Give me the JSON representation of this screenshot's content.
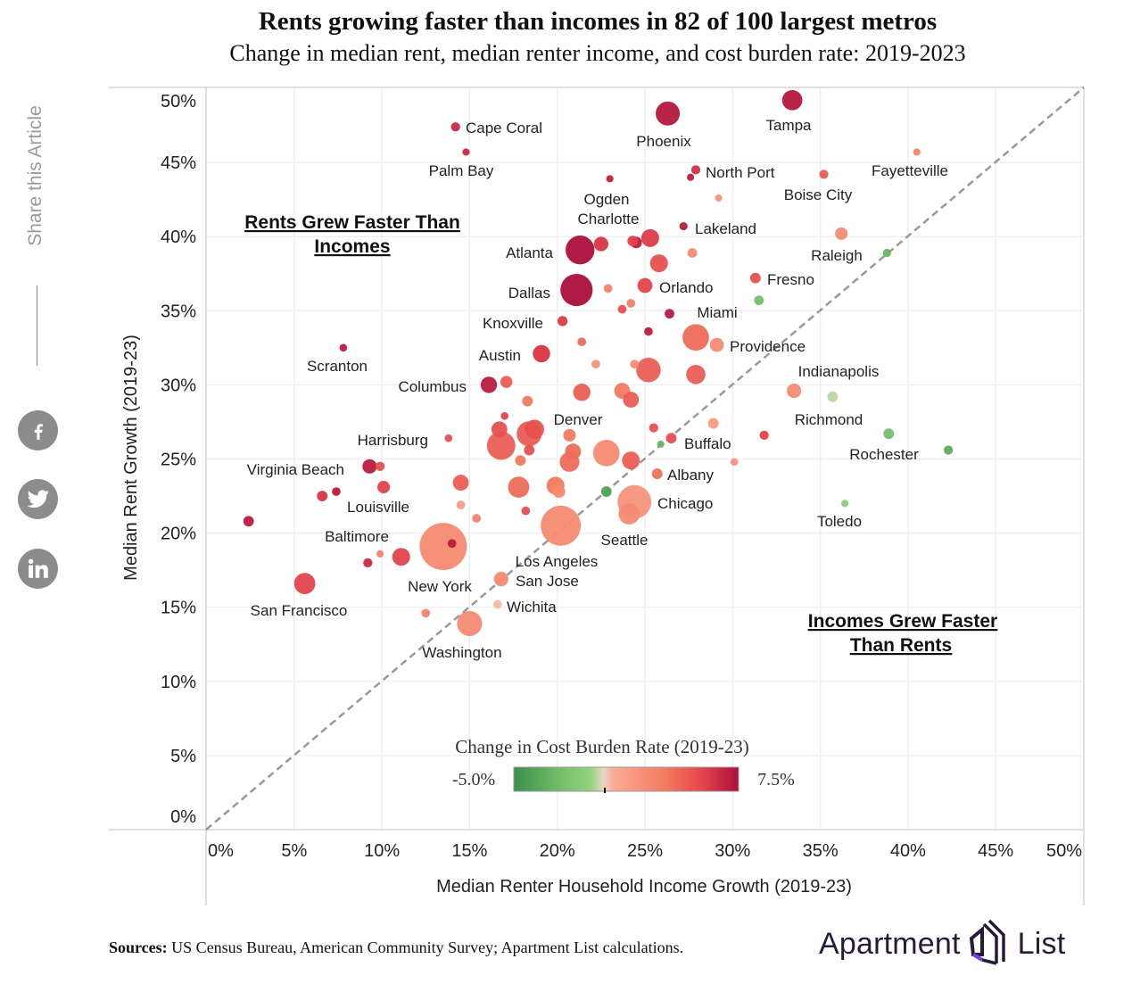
{
  "header": {
    "title": "Rents growing faster than incomes in 82 of 100 largest metros",
    "subtitle": "Change in median rent, median renter income, and cost burden rate: 2019-2023"
  },
  "share": {
    "label": "Share this Article",
    "icons": [
      "facebook-icon",
      "twitter-icon",
      "linkedin-icon"
    ]
  },
  "footer": {
    "sources_label": "Sources:",
    "sources_text": " US Census Bureau, American Community Survey; Apartment List calculations.",
    "logo_text_1": "Apartment",
    "logo_text_2": "List"
  },
  "chart_data": {
    "type": "scatter",
    "title": "Rents growing faster than incomes in 82 of 100 largest metros",
    "subtitle": "Change in median rent, median renter income, and cost burden rate: 2019-2023",
    "xlabel": "Median Renter Household Income Growth (2019-23)",
    "ylabel": "Median Rent Growth (2019-23)",
    "xlim": [
      0,
      50
    ],
    "ylim": [
      0,
      50
    ],
    "x_ticks": [
      "0%",
      "5%",
      "10%",
      "15%",
      "20%",
      "25%",
      "30%",
      "35%",
      "40%",
      "45%",
      "50%"
    ],
    "y_ticks": [
      "0%",
      "5%",
      "10%",
      "15%",
      "20%",
      "25%",
      "30%",
      "35%",
      "40%",
      "45%",
      "50%"
    ],
    "grid": true,
    "reference_line": "y = x (dashed)",
    "annotations": {
      "upper_left": [
        "Rents Grew Faster Than",
        "Incomes"
      ],
      "lower_right": [
        "Incomes Grew Faster ",
        "Than Rents"
      ]
    },
    "color_legend": {
      "title": "Change in Cost Burden Rate (2019-23)",
      "min_label": "-5.0%",
      "max_label": "7.5%",
      "min": -5,
      "max": 7.5,
      "colors": [
        "#3b8f4c",
        "#8fd07c",
        "#f2d2c2",
        "#fbab97",
        "#f27a5e",
        "#e2404a",
        "#ab0f3a"
      ]
    },
    "size_encoding": "relative metro size",
    "points": [
      {
        "name": "Cape Coral",
        "x": 14.2,
        "y": 47.4,
        "cb": 6.5,
        "size": 1.9
      },
      {
        "name": "Palm Bay",
        "x": 14.8,
        "y": 45.7,
        "cb": 6.5,
        "size": 1.5
      },
      {
        "name": "Phoenix",
        "x": 26.3,
        "y": 48.3,
        "cb": 7.2,
        "size": 5.0
      },
      {
        "name": "Tampa",
        "x": 33.4,
        "y": 49.2,
        "cb": 7.2,
        "size": 4.2
      },
      {
        "name": "Ogden",
        "x": 23.0,
        "y": 43.9,
        "cb": 6.8,
        "size": 1.5
      },
      {
        "name": "North Port",
        "x": 27.9,
        "y": 44.5,
        "cb": 6.2,
        "size": 1.9
      },
      {
        "name": "",
        "x": 27.6,
        "y": 44.0,
        "cb": 7.0,
        "size": 1.5
      },
      {
        "name": "",
        "x": 29.2,
        "y": 42.6,
        "cb": 2.0,
        "size": 1.5
      },
      {
        "name": "Boise City",
        "x": 35.2,
        "y": 44.2,
        "cb": 4.5,
        "size": 1.9
      },
      {
        "name": "Fayetteville",
        "x": 40.5,
        "y": 45.7,
        "cb": 3.0,
        "size": 1.5
      },
      {
        "name": "Lakeland",
        "x": 27.2,
        "y": 40.7,
        "cb": 7.0,
        "size": 1.7
      },
      {
        "name": "Charlotte",
        "x": 22.5,
        "y": 39.5,
        "cb": 6.0,
        "size": 3.0
      },
      {
        "name": "",
        "x": 24.3,
        "y": 39.7,
        "cb": 5.5,
        "size": 2.2
      },
      {
        "name": "",
        "x": 24.5,
        "y": 39.6,
        "cb": 7.0,
        "size": 2.4
      },
      {
        "name": "",
        "x": 25.3,
        "y": 39.9,
        "cb": 5.8,
        "size": 3.7
      },
      {
        "name": "Atlanta",
        "x": 21.3,
        "y": 39.1,
        "cb": 7.5,
        "size": 6.0
      },
      {
        "name": "",
        "x": 25.8,
        "y": 38.2,
        "cb": 5.0,
        "size": 3.7
      },
      {
        "name": "",
        "x": 27.7,
        "y": 38.9,
        "cb": 2.5,
        "size": 2.0
      },
      {
        "name": "Raleigh",
        "x": 36.2,
        "y": 40.2,
        "cb": 2.5,
        "size": 2.6
      },
      {
        "name": "",
        "x": 38.8,
        "y": 38.9,
        "cb": -3.0,
        "size": 1.7
      },
      {
        "name": "Fresno",
        "x": 31.3,
        "y": 37.2,
        "cb": 5.0,
        "size": 2.2
      },
      {
        "name": "",
        "x": 31.5,
        "y": 35.7,
        "cb": -2.5,
        "size": 2.0
      },
      {
        "name": "Orlando",
        "x": 25.0,
        "y": 36.7,
        "cb": 5.5,
        "size": 3.1
      },
      {
        "name": "Dallas",
        "x": 21.1,
        "y": 36.4,
        "cb": 7.5,
        "size": 6.7
      },
      {
        "name": "",
        "x": 22.9,
        "y": 36.5,
        "cb": 3.0,
        "size": 1.8
      },
      {
        "name": "",
        "x": 24.2,
        "y": 35.5,
        "cb": 3.2,
        "size": 1.8
      },
      {
        "name": "",
        "x": 23.7,
        "y": 35.1,
        "cb": 5.0,
        "size": 1.8
      },
      {
        "name": "Miami",
        "x": 26.4,
        "y": 34.8,
        "cb": 7.0,
        "size": 2.0
      },
      {
        "name": "Knoxville",
        "x": 20.3,
        "y": 34.3,
        "cb": 5.8,
        "size": 2.1
      },
      {
        "name": "",
        "x": 25.2,
        "y": 33.6,
        "cb": 7.0,
        "size": 1.8
      },
      {
        "name": "",
        "x": 27.9,
        "y": 33.2,
        "cb": 4.0,
        "size": 5.5
      },
      {
        "name": "Providence",
        "x": 29.1,
        "y": 32.7,
        "cb": 2.5,
        "size": 2.9
      },
      {
        "name": "",
        "x": 21.4,
        "y": 32.9,
        "cb": 4.0,
        "size": 1.8
      },
      {
        "name": "Austin",
        "x": 19.1,
        "y": 32.1,
        "cb": 6.0,
        "size": 3.6
      },
      {
        "name": "",
        "x": 22.2,
        "y": 31.4,
        "cb": 2.0,
        "size": 1.8
      },
      {
        "name": "",
        "x": 24.4,
        "y": 31.4,
        "cb": 2.5,
        "size": 1.8
      },
      {
        "name": "",
        "x": 25.2,
        "y": 31.0,
        "cb": 4.5,
        "size": 5.1
      },
      {
        "name": "",
        "x": 27.9,
        "y": 30.7,
        "cb": 4.5,
        "size": 4.0
      },
      {
        "name": "Indianapolis",
        "x": 33.5,
        "y": 29.6,
        "cb": 2.5,
        "size": 3.0
      },
      {
        "name": "Richmond",
        "x": 35.7,
        "y": 29.2,
        "cb": -0.5,
        "size": 2.2
      },
      {
        "name": "Columbus",
        "x": 16.1,
        "y": 30.0,
        "cb": 7.0,
        "size": 3.4
      },
      {
        "name": "",
        "x": 17.1,
        "y": 30.2,
        "cb": 4.5,
        "size": 2.5
      },
      {
        "name": "",
        "x": 21.4,
        "y": 29.5,
        "cb": 4.5,
        "size": 3.6
      },
      {
        "name": "",
        "x": 23.7,
        "y": 29.6,
        "cb": 3.5,
        "size": 3.3
      },
      {
        "name": "",
        "x": 24.2,
        "y": 29.0,
        "cb": 4.5,
        "size": 3.3
      },
      {
        "name": "",
        "x": 18.3,
        "y": 28.9,
        "cb": 3.5,
        "size": 2.2
      },
      {
        "name": "",
        "x": 25.5,
        "y": 27.1,
        "cb": 5.0,
        "size": 1.9
      },
      {
        "name": "",
        "x": 28.9,
        "y": 27.4,
        "cb": 1.5,
        "size": 2.2
      },
      {
        "name": "Rochester",
        "x": 38.9,
        "y": 26.7,
        "cb": -2.5,
        "size": 2.2
      },
      {
        "name": "Scranton",
        "x": 7.8,
        "y": 32.5,
        "cb": 7.0,
        "size": 1.6
      },
      {
        "name": "Harrisburg",
        "x": 13.8,
        "y": 26.4,
        "cb": 5.0,
        "size": 1.6
      },
      {
        "name": "",
        "x": 17.0,
        "y": 27.9,
        "cb": 5.5,
        "size": 1.6
      },
      {
        "name": "",
        "x": 16.7,
        "y": 27.0,
        "cb": 5.0,
        "size": 3.3
      },
      {
        "name": "",
        "x": 16.8,
        "y": 25.9,
        "cb": 4.5,
        "size": 5.9
      },
      {
        "name": "",
        "x": 18.4,
        "y": 26.7,
        "cb": 4.6,
        "size": 5.2
      },
      {
        "name": "Denver",
        "x": 18.7,
        "y": 27.0,
        "cb": 5.0,
        "size": 4.0
      },
      {
        "name": "",
        "x": 18.4,
        "y": 25.6,
        "cb": 5.0,
        "size": 2.2
      },
      {
        "name": "",
        "x": 17.9,
        "y": 24.9,
        "cb": 3.5,
        "size": 2.2
      },
      {
        "name": "",
        "x": 20.7,
        "y": 26.6,
        "cb": 3.5,
        "size": 2.6
      },
      {
        "name": "",
        "x": 20.9,
        "y": 25.5,
        "cb": 4.0,
        "size": 3.3
      },
      {
        "name": "",
        "x": 20.7,
        "y": 24.8,
        "cb": 4.0,
        "size": 4.1
      },
      {
        "name": "",
        "x": 22.8,
        "y": 25.4,
        "cb": 2.5,
        "size": 5.5
      },
      {
        "name": "",
        "x": 24.2,
        "y": 24.9,
        "cb": 4.5,
        "size": 3.7
      },
      {
        "name": "",
        "x": 25.9,
        "y": 26.0,
        "cb": -3.0,
        "size": 1.5
      },
      {
        "name": "Buffalo",
        "x": 26.5,
        "y": 26.4,
        "cb": 5.0,
        "size": 2.2
      },
      {
        "name": "",
        "x": 30.1,
        "y": 24.8,
        "cb": 2.0,
        "size": 1.6
      },
      {
        "name": "Albany",
        "x": 25.7,
        "y": 24.0,
        "cb": 3.8,
        "size": 2.2
      },
      {
        "name": "",
        "x": 31.8,
        "y": 26.6,
        "cb": 5.5,
        "size": 1.9
      },
      {
        "name": "",
        "x": 42.3,
        "y": 25.6,
        "cb": -3.5,
        "size": 1.9
      },
      {
        "name": "Toledo",
        "x": 36.4,
        "y": 22.0,
        "cb": -1.5,
        "size": 1.5
      },
      {
        "name": "Virginia Beach",
        "x": 9.3,
        "y": 24.5,
        "cb": 7.0,
        "size": 3.0
      },
      {
        "name": "",
        "x": 9.9,
        "y": 24.5,
        "cb": 5.0,
        "size": 1.9
      },
      {
        "name": "Louisville",
        "x": 10.1,
        "y": 23.1,
        "cb": 5.5,
        "size": 2.6
      },
      {
        "name": "",
        "x": 7.4,
        "y": 22.8,
        "cb": 7.0,
        "size": 1.8
      },
      {
        "name": "",
        "x": 6.6,
        "y": 22.5,
        "cb": 6.0,
        "size": 2.2
      },
      {
        "name": "",
        "x": 2.4,
        "y": 20.8,
        "cb": 7.0,
        "size": 2.2
      },
      {
        "name": "",
        "x": 14.5,
        "y": 23.4,
        "cb": 4.5,
        "size": 3.3
      },
      {
        "name": "",
        "x": 14.5,
        "y": 21.9,
        "cb": 1.5,
        "size": 1.8
      },
      {
        "name": "",
        "x": 15.4,
        "y": 21.0,
        "cb": 3.0,
        "size": 1.8
      },
      {
        "name": "",
        "x": 17.8,
        "y": 23.1,
        "cb": 4.0,
        "size": 4.4
      },
      {
        "name": "",
        "x": 18.2,
        "y": 21.5,
        "cb": 5.0,
        "size": 1.8
      },
      {
        "name": "",
        "x": 19.9,
        "y": 23.2,
        "cb": 3.5,
        "size": 3.7
      },
      {
        "name": "",
        "x": 20.1,
        "y": 22.8,
        "cb": 2.5,
        "size": 2.6
      },
      {
        "name": "Los Angeles",
        "x": 20.2,
        "y": 20.5,
        "cb": 2.5,
        "size": 8.3
      },
      {
        "name": "",
        "x": 24.1,
        "y": 21.3,
        "cb": 2.5,
        "size": 4.4
      },
      {
        "name": "Chicago",
        "x": 24.4,
        "y": 22.1,
        "cb": 2.0,
        "size": 7.0
      },
      {
        "name": "Seattle",
        "x": 22.8,
        "y": 22.8,
        "cb": -4.0,
        "size": 2.2
      },
      {
        "name": "New York",
        "x": 13.5,
        "y": 19.1,
        "cb": 2.5,
        "size": 9.8
      },
      {
        "name": "",
        "x": 14.0,
        "y": 19.3,
        "cb": 7.0,
        "size": 1.8
      },
      {
        "name": "Baltimore",
        "x": 11.1,
        "y": 18.4,
        "cb": 5.5,
        "size": 3.7
      },
      {
        "name": "",
        "x": 9.9,
        "y": 18.6,
        "cb": 3.0,
        "size": 1.5
      },
      {
        "name": "",
        "x": 9.2,
        "y": 18.0,
        "cb": 6.5,
        "size": 1.9
      },
      {
        "name": "San Francisco",
        "x": 5.6,
        "y": 16.6,
        "cb": 5.5,
        "size": 4.4
      },
      {
        "name": "San Jose",
        "x": 16.8,
        "y": 16.9,
        "cb": 2.5,
        "size": 3.0
      },
      {
        "name": "Wichita",
        "x": 16.6,
        "y": 15.2,
        "cb": 0.4,
        "size": 1.8
      },
      {
        "name": "",
        "x": 12.5,
        "y": 14.6,
        "cb": 3.0,
        "size": 1.8
      },
      {
        "name": "Washington",
        "x": 15.0,
        "y": 13.9,
        "cb": 2.5,
        "size": 5.2
      }
    ]
  }
}
